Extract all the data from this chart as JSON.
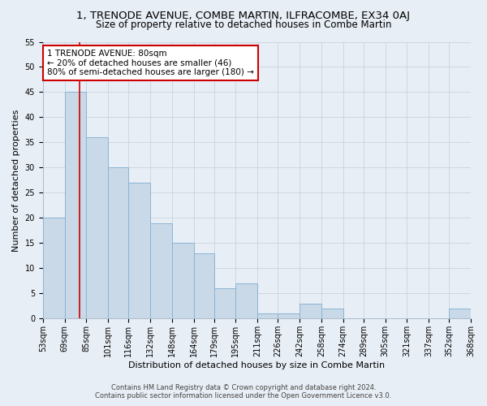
{
  "title": "1, TRENODE AVENUE, COMBE MARTIN, ILFRACOMBE, EX34 0AJ",
  "subtitle": "Size of property relative to detached houses in Combe Martin",
  "xlabel": "Distribution of detached houses by size in Combe Martin",
  "ylabel": "Number of detached properties",
  "footer_line1": "Contains HM Land Registry data © Crown copyright and database right 2024.",
  "footer_line2": "Contains public sector information licensed under the Open Government Licence v3.0.",
  "bar_edges": [
    53,
    69,
    85,
    101,
    116,
    132,
    148,
    164,
    179,
    195,
    211,
    226,
    242,
    258,
    274,
    289,
    305,
    321,
    337,
    352,
    368
  ],
  "bar_heights": [
    20,
    45,
    36,
    30,
    27,
    19,
    15,
    13,
    6,
    7,
    1,
    1,
    3,
    2,
    0,
    0,
    0,
    0,
    0,
    2
  ],
  "bar_color": "#c9d9e8",
  "bar_edge_color": "#8ab4d4",
  "grid_color": "#c8d4e0",
  "property_size": 80,
  "vline_color": "#cc0000",
  "annotation_text": "1 TRENODE AVENUE: 80sqm\n← 20% of detached houses are smaller (46)\n80% of semi-detached houses are larger (180) →",
  "annotation_box_color": "#ffffff",
  "annotation_box_edge": "#cc0000",
  "ylim": [
    0,
    55
  ],
  "yticks": [
    0,
    5,
    10,
    15,
    20,
    25,
    30,
    35,
    40,
    45,
    50,
    55
  ],
  "background_color": "#e8eef5",
  "title_fontsize": 9.5,
  "subtitle_fontsize": 8.5,
  "xlabel_fontsize": 8,
  "ylabel_fontsize": 8,
  "tick_fontsize": 7,
  "footer_fontsize": 6,
  "annotation_fontsize": 7.5
}
